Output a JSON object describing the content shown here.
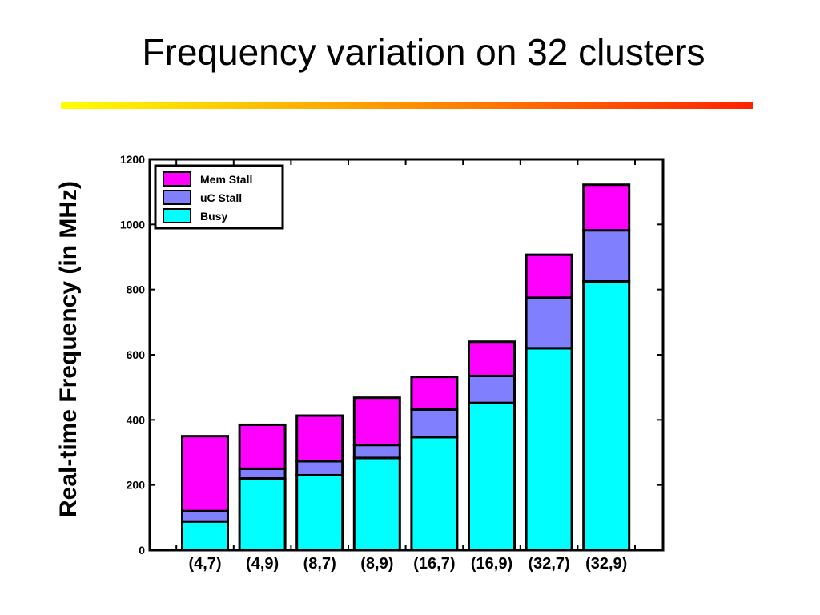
{
  "slide": {
    "title": "Frequency variation on 32 clusters",
    "rule_gradient": [
      "#ffff00",
      "#ff2200"
    ]
  },
  "chart_data": {
    "type": "bar",
    "stacked": true,
    "ylabel": "Real-time Frequency (in MHz)",
    "xlabel": "",
    "ylim": [
      0,
      1200
    ],
    "yticks": [
      0,
      200,
      400,
      600,
      800,
      1000,
      1200
    ],
    "grid": false,
    "legend_position": "top-left",
    "categories": [
      "(4,7)",
      "(4,9)",
      "(8,7)",
      "(8,9)",
      "(16,7)",
      "(16,9)",
      "(32,7)",
      "(32,9)"
    ],
    "series": [
      {
        "name": "Busy",
        "color": "#00ffff",
        "values": [
          88,
          220,
          230,
          283,
          347,
          452,
          620,
          825
        ]
      },
      {
        "name": "uC Stall",
        "color": "#8080ff",
        "values": [
          32,
          30,
          43,
          40,
          85,
          83,
          155,
          157
        ]
      },
      {
        "name": "Mem Stall",
        "color": "#ff00ff",
        "values": [
          230,
          135,
          140,
          145,
          100,
          105,
          132,
          140
        ]
      }
    ],
    "legend_order": [
      "Mem Stall",
      " uC Stall",
      "Busy"
    ]
  }
}
